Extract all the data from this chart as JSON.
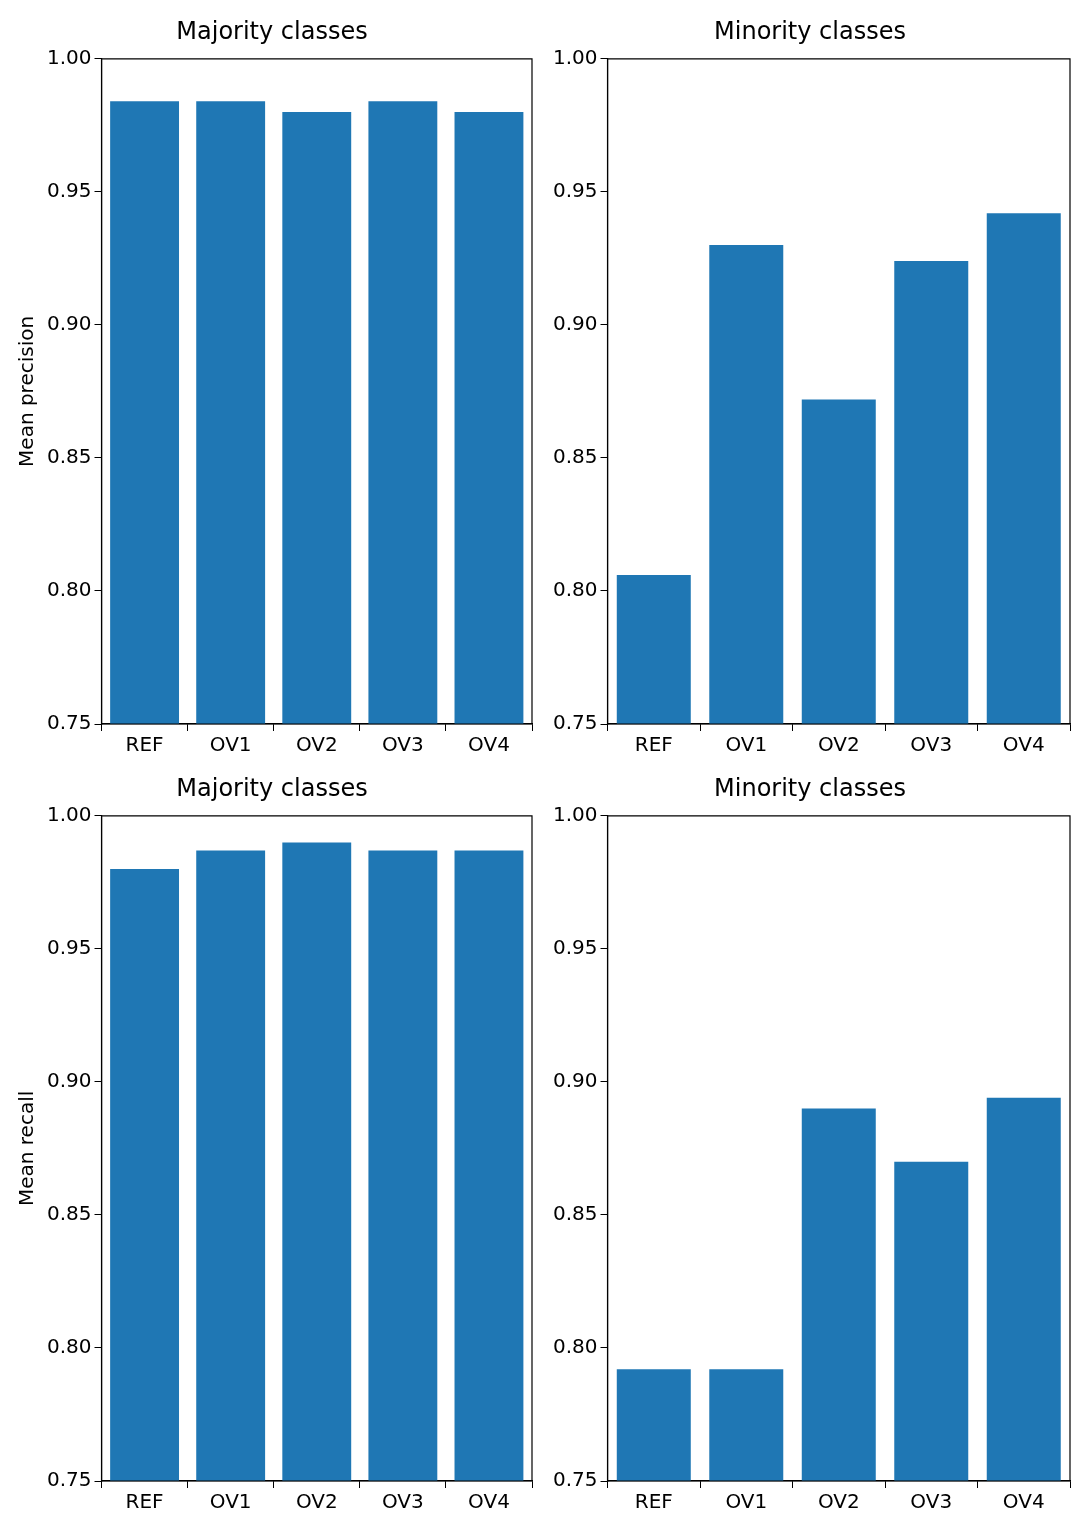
{
  "chart_data": [
    {
      "type": "bar",
      "title": "Majority classes",
      "ylabel": "Mean precision",
      "categories": [
        "REF",
        "OV1",
        "OV2",
        "OV3",
        "OV4"
      ],
      "values": [
        0.984,
        0.984,
        0.98,
        0.984,
        0.98
      ],
      "color": "#1f77b4",
      "ylim": [
        0.75,
        1.0
      ],
      "yticks": [
        {
          "value": 0.75,
          "label": "0.75"
        },
        {
          "value": 0.8,
          "label": "0.80"
        },
        {
          "value": 0.85,
          "label": "0.85"
        },
        {
          "value": 0.9,
          "label": "0.90"
        },
        {
          "value": 0.95,
          "label": "0.95"
        },
        {
          "value": 1.0,
          "label": "1.00"
        }
      ],
      "grid": false
    },
    {
      "type": "bar",
      "title": "Minority classes",
      "categories": [
        "REF",
        "OV1",
        "OV2",
        "OV3",
        "OV4"
      ],
      "values": [
        0.806,
        0.93,
        0.872,
        0.924,
        0.942
      ],
      "color": "#1f77b4",
      "ylim": [
        0.75,
        1.0
      ],
      "yticks": [
        {
          "value": 0.75,
          "label": "0.75"
        },
        {
          "value": 0.8,
          "label": "0.80"
        },
        {
          "value": 0.85,
          "label": "0.85"
        },
        {
          "value": 0.9,
          "label": "0.90"
        },
        {
          "value": 0.95,
          "label": "0.95"
        },
        {
          "value": 1.0,
          "label": "1.00"
        }
      ],
      "grid": false
    },
    {
      "type": "bar",
      "title": "Majority classes",
      "ylabel": "Mean recall",
      "categories": [
        "REF",
        "OV1",
        "OV2",
        "OV3",
        "OV4"
      ],
      "values": [
        0.98,
        0.987,
        0.99,
        0.987,
        0.987
      ],
      "color": "#1f77b4",
      "ylim": [
        0.75,
        1.0
      ],
      "yticks": [
        {
          "value": 0.75,
          "label": "0.75"
        },
        {
          "value": 0.8,
          "label": "0.80"
        },
        {
          "value": 0.85,
          "label": "0.85"
        },
        {
          "value": 0.9,
          "label": "0.90"
        },
        {
          "value": 0.95,
          "label": "0.95"
        },
        {
          "value": 1.0,
          "label": "1.00"
        }
      ],
      "grid": false
    },
    {
      "type": "bar",
      "title": "Minority classes",
      "categories": [
        "REF",
        "OV1",
        "OV2",
        "OV3",
        "OV4"
      ],
      "values": [
        0.792,
        0.792,
        0.89,
        0.87,
        0.894
      ],
      "color": "#1f77b4",
      "ylim": [
        0.75,
        1.0
      ],
      "yticks": [
        {
          "value": 0.75,
          "label": "0.75"
        },
        {
          "value": 0.8,
          "label": "0.80"
        },
        {
          "value": 0.85,
          "label": "0.85"
        },
        {
          "value": 0.9,
          "label": "0.90"
        },
        {
          "value": 0.95,
          "label": "0.95"
        },
        {
          "value": 1.0,
          "label": "1.00"
        }
      ],
      "grid": false
    }
  ]
}
